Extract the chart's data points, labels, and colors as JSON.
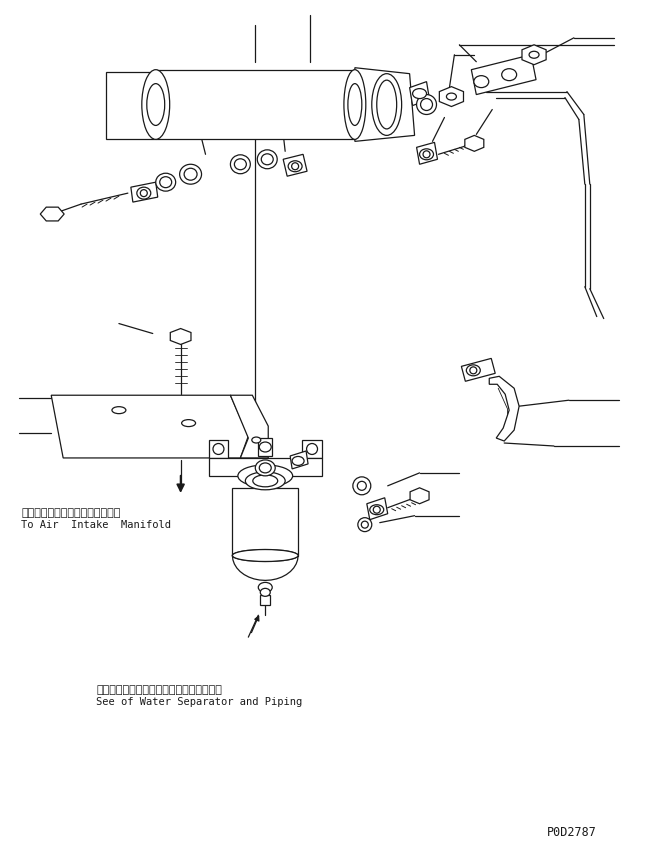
{
  "bg_color": "#ffffff",
  "line_color": "#1a1a1a",
  "text_color": "#1a1a1a",
  "annotation1_jp": "エアーインテークマニホールドへ",
  "annotation1_en": "To Air  Intake  Manifold",
  "annotation2_jp": "ウォータセパレータおよびパイピング参照",
  "annotation2_en": "See of Water Separator and Piping",
  "diagram_id": "P0D2787"
}
